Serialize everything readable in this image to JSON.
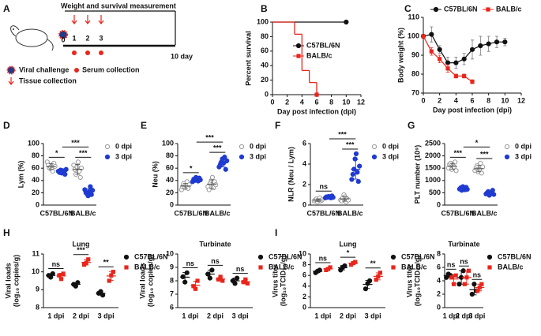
{
  "schematic": {
    "panel": "A",
    "title": "Weight and survival measurement",
    "days": [
      "0",
      "1",
      "2",
      "3"
    ],
    "end_label": "10 day",
    "legend": [
      "Viral challenge",
      "Serum collection",
      "Tissue collection"
    ]
  },
  "chart_data": [
    {
      "type": "step",
      "panel": "B",
      "y_label": "Percent survival",
      "x_label": "Day post infection (dpi)",
      "xlim": [
        0,
        12
      ],
      "xticks": [
        0,
        2,
        4,
        6,
        8,
        10,
        12
      ],
      "ylim": [
        0,
        100
      ],
      "yticks": [
        0,
        20,
        40,
        60,
        80,
        100
      ],
      "legend": "right",
      "series": [
        {
          "name": "C57BL/6N",
          "color": "#111111",
          "marker": "circle",
          "x": [
            0,
            10
          ],
          "values": [
            100,
            100
          ]
        },
        {
          "name": "BALB/c",
          "color": "#e8261c",
          "marker": "square",
          "x": [
            0,
            3,
            4,
            5,
            6
          ],
          "values": [
            100,
            83.3,
            33.3,
            16.7,
            0
          ]
        }
      ]
    },
    {
      "type": "line",
      "panel": "C",
      "y_label": "Body weight (%)",
      "x_label": "Day post infection (dpi)",
      "xlim": [
        0,
        12
      ],
      "xticks": [
        0,
        2,
        4,
        6,
        8,
        10,
        12
      ],
      "ylim": [
        70,
        110
      ],
      "yticks": [
        70,
        80,
        90,
        100,
        110
      ],
      "legend": "top",
      "series": [
        {
          "name": "C57BL/6N",
          "color": "#111111",
          "marker": "circle",
          "x": [
            0,
            1,
            2,
            3,
            4,
            5,
            6,
            7,
            8,
            9,
            10
          ],
          "values": [
            100,
            101,
            93,
            86,
            86,
            88,
            93,
            95,
            96,
            97,
            97
          ],
          "errors": [
            0,
            4,
            2,
            3,
            3,
            3,
            5,
            5,
            4,
            3,
            2
          ]
        },
        {
          "name": "BALB/c",
          "color": "#e8261c",
          "marker": "square",
          "x": [
            0,
            1,
            2,
            3,
            4,
            5,
            6
          ],
          "values": [
            100,
            92,
            88,
            83,
            79,
            79,
            76
          ],
          "errors": [
            0,
            2,
            2,
            2,
            1,
            1,
            1
          ]
        }
      ]
    },
    {
      "type": "dot",
      "panel": "D",
      "y_label": "Lym (%)",
      "categories": [
        "C57BL/6N",
        "BALB/c"
      ],
      "ylim": [
        0,
        100
      ],
      "yticks": [
        0,
        20,
        40,
        60,
        80,
        100
      ],
      "legend": "right",
      "comparison_labels": [
        "*",
        "***"
      ],
      "across_label": "***",
      "series": [
        {
          "name": "0 dpi",
          "color": "#9a9a9a",
          "marker": "circle-open",
          "values": [
            [
              70,
              65,
              60,
              62,
              58,
              55,
              68,
              63
            ],
            [
              65,
              58,
              50,
              62,
              70,
              55,
              45,
              60
            ]
          ],
          "means": [
            62.6,
            58.1
          ],
          "sd": [
            5,
            8
          ]
        },
        {
          "name": "3 dpi",
          "color": "#1f3bd1",
          "marker": "circle",
          "values": [
            [
              55,
              53,
              57,
              52,
              56,
              54,
              50,
              58
            ],
            [
              25,
              20,
              18,
              15,
              22,
              30,
              17,
              24
            ]
          ],
          "means": [
            54.4,
            21.4
          ],
          "sd": [
            2.6,
            4.8
          ]
        }
      ]
    },
    {
      "type": "dot",
      "panel": "E",
      "y_label": "Neu (%)",
      "categories": [
        "C57BL/6N",
        "BALB/c"
      ],
      "ylim": [
        0,
        100
      ],
      "yticks": [
        0,
        20,
        40,
        60,
        80,
        100
      ],
      "legend": "right",
      "comparison_labels": [
        "*",
        "***"
      ],
      "across_label": "***",
      "series": [
        {
          "name": "0 dpi",
          "color": "#9a9a9a",
          "marker": "circle-open",
          "values": [
            [
              25,
              30,
              35,
              28,
              32,
              38,
              27,
              33
            ],
            [
              30,
              25,
              35,
              40,
              45,
              28,
              38,
              33
            ]
          ],
          "means": [
            31,
            34
          ],
          "sd": [
            4,
            7
          ]
        },
        {
          "name": "3 dpi",
          "color": "#1f3bd1",
          "marker": "circle",
          "values": [
            [
              38,
              42,
              40,
              45,
              43,
              39,
              44,
              41
            ],
            [
              62,
              65,
              70,
              75,
              68,
              78,
              58,
              72
            ]
          ],
          "means": [
            41.5,
            68.5
          ],
          "sd": [
            2.4,
            6.5
          ]
        }
      ]
    },
    {
      "type": "dot",
      "panel": "F",
      "y_label": "NLR (Neu / Lym)",
      "categories": [
        "C57BL/6N",
        "BALB/c"
      ],
      "ylim": [
        0,
        6
      ],
      "yticks": [
        0,
        2,
        4,
        6
      ],
      "legend": "right",
      "comparison_labels": [
        "ns",
        "***"
      ],
      "across_label": "***",
      "series": [
        {
          "name": "0 dpi",
          "color": "#9a9a9a",
          "marker": "circle-open",
          "values": [
            [
              0.4,
              0.5,
              0.6,
              0.3,
              0.5,
              0.7,
              0.4,
              0.5
            ],
            [
              0.5,
              0.4,
              0.7,
              1.0,
              0.8,
              0.3,
              0.6,
              0.5
            ]
          ],
          "means": [
            0.49,
            0.6
          ],
          "sd": [
            0.12,
            0.22
          ]
        },
        {
          "name": "3 dpi",
          "color": "#1f3bd1",
          "marker": "circle",
          "values": [
            [
              0.7,
              0.8,
              0.75,
              0.85,
              0.8,
              0.7,
              0.9,
              0.75
            ],
            [
              2.5,
              3.0,
              3.5,
              4.5,
              5.0,
              3.2,
              2.3,
              3.8
            ]
          ],
          "means": [
            0.78,
            3.48
          ],
          "sd": [
            0.07,
            0.95
          ]
        }
      ]
    },
    {
      "type": "dot",
      "panel": "G",
      "y_label": "PLT number (10⁹)",
      "categories": [
        "C57BL/6N",
        "BALB/c"
      ],
      "ylim": [
        0,
        2500
      ],
      "yticks": [
        0,
        500,
        1000,
        1500,
        2000,
        2500
      ],
      "legend": "right",
      "comparison_labels": [
        "***",
        "***"
      ],
      "across_label": "*",
      "series": [
        {
          "name": "0 dpi",
          "color": "#9a9a9a",
          "marker": "circle-open",
          "values": [
            [
              1500,
              1650,
              1700,
              1450,
              1600,
              1550,
              1750,
              1400
            ],
            [
              1400,
              1500,
              1600,
              1350,
              1450,
              1700,
              1300,
              1550
            ]
          ],
          "means": [
            1575,
            1481
          ],
          "sd": [
            120,
            130
          ]
        },
        {
          "name": "3 dpi",
          "color": "#1f3bd1",
          "marker": "circle",
          "values": [
            [
              650,
              700,
              600,
              750,
              680,
              620,
              720,
              640
            ],
            [
              450,
              500,
              550,
              400,
              480,
              520,
              600,
              430
            ]
          ],
          "means": [
            670,
            491
          ],
          "sd": [
            50,
            62
          ]
        }
      ]
    },
    {
      "type": "dot",
      "panel": "H",
      "title": "Lung",
      "y_label": [
        "Viral loads",
        "(log₁₀ copies/g)"
      ],
      "categories": [
        "1 dpi",
        "2 dpi",
        "3 dpi"
      ],
      "ylim": [
        8,
        11
      ],
      "yticks": [
        8,
        9,
        10,
        11
      ],
      "legend": "right",
      "comparison_labels": [
        "ns",
        "***",
        "**"
      ],
      "series": [
        {
          "name": "C57BL/6N",
          "color": "#111111",
          "marker": "circle",
          "values": [
            [
              9.8,
              9.7,
              9.9
            ],
            [
              9.3,
              9.2,
              9.4
            ],
            [
              8.8,
              8.9,
              8.7
            ]
          ],
          "means": [
            9.8,
            9.3,
            8.8
          ],
          "sd": [
            0.1,
            0.1,
            0.1
          ]
        },
        {
          "name": "BALB/c",
          "color": "#e8261c",
          "marker": "square",
          "values": [
            [
              9.8,
              9.6,
              9.9
            ],
            [
              10.4,
              10.5,
              10.7
            ],
            [
              9.5,
              9.8,
              10.0
            ]
          ],
          "means": [
            9.77,
            10.53,
            9.77
          ],
          "sd": [
            0.15,
            0.15,
            0.25
          ]
        }
      ]
    },
    {
      "type": "dot",
      "title": "Turbinate",
      "y_label": [
        "Viral loads",
        "(log₁₀ copies/g)"
      ],
      "categories": [
        "1 dpi",
        "2 dpi",
        "3 dpi"
      ],
      "ylim": [
        6,
        10
      ],
      "yticks": [
        6,
        7,
        8,
        9,
        10
      ],
      "legend": "right",
      "comparison_labels": [
        "ns",
        "ns",
        "ns"
      ],
      "series": [
        {
          "name": "C57BL/6N",
          "color": "#111111",
          "marker": "circle",
          "values": [
            [
              8.3,
              7.9,
              8.6
            ],
            [
              8.5,
              8.2,
              8.8
            ],
            [
              8.0,
              7.8,
              8.2
            ]
          ],
          "means": [
            8.27,
            8.5,
            8.0
          ],
          "sd": [
            0.35,
            0.3,
            0.2
          ]
        },
        {
          "name": "BALB/c",
          "color": "#e8261c",
          "marker": "square",
          "values": [
            [
              7.6,
              7.4,
              8.0
            ],
            [
              8.1,
              8.3,
              8.0
            ],
            [
              7.9,
              8.1,
              7.8
            ]
          ],
          "means": [
            7.67,
            8.13,
            7.93
          ],
          "sd": [
            0.3,
            0.15,
            0.15
          ]
        }
      ]
    },
    {
      "type": "dot",
      "panel": "I",
      "title": "Lung",
      "y_label": [
        "Virus titer",
        "(log₁₀TCID₅₀/g)"
      ],
      "categories": [
        "1 dpi",
        "2 dpi",
        "3 dpi"
      ],
      "ylim": [
        0,
        10
      ],
      "yticks": [
        0,
        2,
        4,
        6,
        8,
        10
      ],
      "legend": "right",
      "comparison_labels": [
        "ns",
        "*",
        "**"
      ],
      "series": [
        {
          "name": "C57BL/6N",
          "color": "#111111",
          "marker": "circle",
          "values": [
            [
              6.5,
              6.8,
              7.0
            ],
            [
              7.0,
              7.5,
              7.8
            ],
            [
              3.5,
              4.5,
              5.0
            ]
          ],
          "means": [
            6.77,
            7.43,
            4.33
          ],
          "sd": [
            0.25,
            0.4,
            0.76
          ]
        },
        {
          "name": "BALB/c",
          "color": "#e8261c",
          "marker": "square",
          "values": [
            [
              7.0,
              7.2,
              7.5
            ],
            [
              8.0,
              8.3,
              8.5
            ],
            [
              5.2,
              5.8,
              6.5
            ]
          ],
          "means": [
            7.23,
            8.27,
            5.83
          ],
          "sd": [
            0.25,
            0.25,
            0.65
          ]
        }
      ]
    },
    {
      "type": "dot",
      "title": "Turbinate",
      "y_label": [
        "Virus titer",
        "(log₁₀TCID₅₀/g)"
      ],
      "categories": [
        "1 dpi",
        "2 dpi",
        "3 dpi"
      ],
      "ylim": [
        0,
        8
      ],
      "yticks": [
        0,
        2,
        4,
        6,
        8
      ],
      "legend": "right",
      "comparison_labels": [
        "ns",
        "ns",
        "ns"
      ],
      "series": [
        {
          "name": "C57BL/6N",
          "color": "#111111",
          "marker": "circle",
          "values": [
            [
              4.5,
              5.0,
              4.8
            ],
            [
              3.5,
              4.5,
              5.5
            ],
            [
              2.0,
              3.5,
              2.5
            ]
          ],
          "means": [
            4.77,
            4.5,
            2.67
          ],
          "sd": [
            0.25,
            1.0,
            0.76
          ]
        },
        {
          "name": "BALB/c",
          "color": "#e8261c",
          "marker": "square",
          "values": [
            [
              4.5,
              3.5,
              4.8
            ],
            [
              3.5,
              4.5,
              5.5
            ],
            [
              2.5,
              3.0,
              3.5
            ]
          ],
          "means": [
            4.27,
            4.5,
            3.0
          ],
          "sd": [
            0.68,
            1.0,
            0.5
          ]
        }
      ]
    }
  ]
}
